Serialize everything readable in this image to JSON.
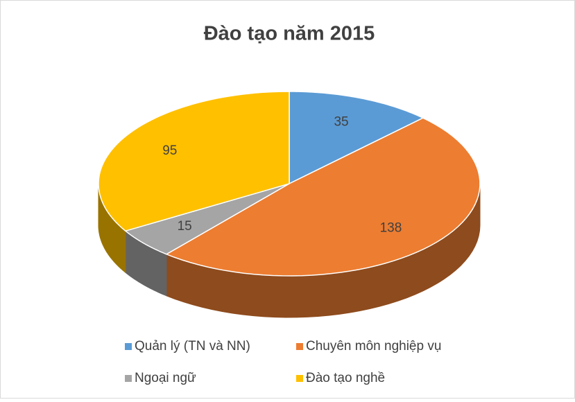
{
  "chart_data": {
    "type": "pie3d",
    "title": "Đào tạo năm 2015",
    "categories": [
      "Quản lý (TN và NN)",
      "Chuyên môn nghiệp vụ",
      "Ngoại ngữ",
      "Đào tạo nghề"
    ],
    "values": [
      35,
      138,
      15,
      95
    ],
    "colors": [
      "#5b9bd5",
      "#ed7d31",
      "#a5a5a5",
      "#ffc000"
    ],
    "legend": "bottom"
  }
}
